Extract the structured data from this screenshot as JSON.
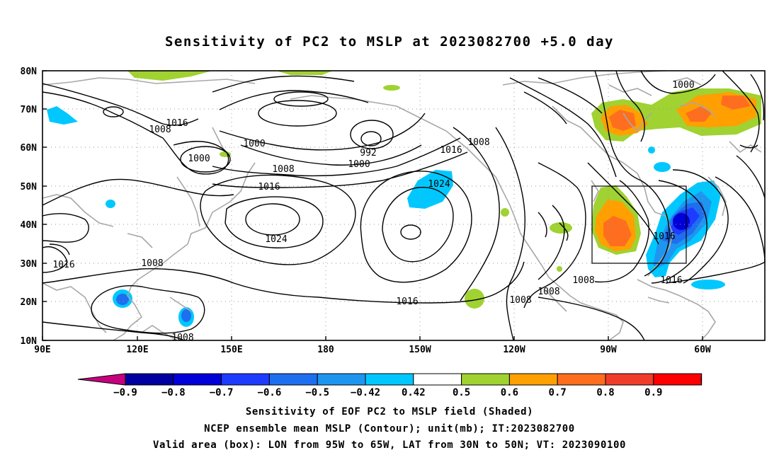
{
  "title": "Sensitivity of PC2 to MSLP at 2023082700 +5.0 day",
  "lat_labels": [
    "80N",
    "70N",
    "60N",
    "50N",
    "40N",
    "30N",
    "20N",
    "10N"
  ],
  "lon_labels": [
    "90E",
    "120E",
    "150E",
    "180",
    "150W",
    "120W",
    "90W",
    "60W"
  ],
  "colorbar": {
    "labels": [
      "−0.9",
      "−0.8",
      "−0.7",
      "−0.6",
      "−0.5",
      "−0.42",
      "0.42",
      "0.5",
      "0.6",
      "0.7",
      "0.8",
      "0.9"
    ],
    "colors": [
      "#0000a0",
      "#0000d8",
      "#1e3cff",
      "#1e6ef0",
      "#1e96f0",
      "#00c8ff",
      "#ffffff",
      "#a0d232",
      "#ffa000",
      "#ff6e1e",
      "#f03c28",
      "#ff0000"
    ],
    "low_end_color": "#c80080",
    "high_end_color": "#ff9ac8"
  },
  "contour_labels": [
    {
      "text": "1016"
    },
    {
      "text": "1008"
    },
    {
      "text": "1000"
    },
    {
      "text": "1000"
    },
    {
      "text": "992"
    },
    {
      "text": "1000"
    },
    {
      "text": "1008"
    },
    {
      "text": "1016"
    },
    {
      "text": "1016"
    },
    {
      "text": "1008"
    },
    {
      "text": "1024"
    },
    {
      "text": "1024"
    },
    {
      "text": "1016"
    },
    {
      "text": "1008"
    },
    {
      "text": "1016"
    },
    {
      "text": "1008"
    },
    {
      "text": "1008"
    },
    {
      "text": "1008"
    },
    {
      "text": "1008"
    },
    {
      "text": "1016"
    },
    {
      "text": "1016"
    },
    {
      "text": "1000"
    }
  ],
  "valid_box": {
    "lon_from": "95W",
    "lon_to": "65W",
    "lat_from": "30N",
    "lat_to": "50N"
  },
  "captions": {
    "line1": "Sensitivity of EOF PC2 to MSLP field (Shaded)",
    "line2": "NCEP ensemble mean MSLP (Contour); unit(mb); IT:2023082700",
    "line3": "Valid area (box): LON from 95W to 65W, LAT from 30N to 50N; VT: 2023090100"
  }
}
